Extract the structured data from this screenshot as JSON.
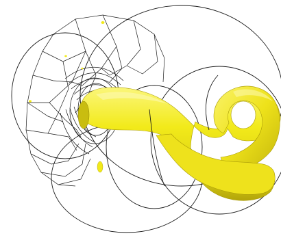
{
  "scene": {
    "background_color": "#ffffff",
    "wireframe_color": "#1a1a1a",
    "surface_color": "#f2ea1a",
    "surface_highlight_color": "#fbf67a",
    "surface_shadow_color": "#b3a50a",
    "surface_name": "isosurface-vortex-tube"
  }
}
